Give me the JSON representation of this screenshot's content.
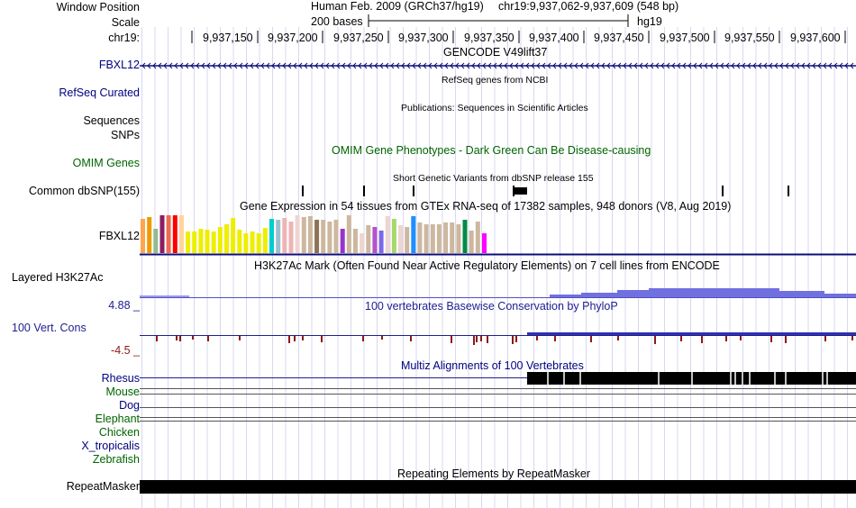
{
  "header": {
    "window_position_label": "Window Position",
    "assembly": "Human Feb. 2009 (GRCh37/hg19)",
    "position": "chr19:9,937,062-9,937,609 (548 bp)",
    "scale_label": "Scale",
    "scale_bases": "200 bases",
    "scale_db": "hg19",
    "chrom_label": "chr19:",
    "ruler_ticks": [
      "9,937,150",
      "9,937,200",
      "9,937,250",
      "9,937,300",
      "9,937,350",
      "9,937,400",
      "9,937,450",
      "9,937,500",
      "9,937,550",
      "9,937,600"
    ]
  },
  "tracks": {
    "gencode": {
      "title": "GENCODE V49lift37",
      "label": "FBXL12"
    },
    "refseq": {
      "title": "RefSeq genes from NCBI",
      "label": "RefSeq Curated"
    },
    "publications": {
      "title": "Publications: Sequences in Scientific Articles",
      "label1": "Sequences",
      "label2": "SNPs"
    },
    "omim": {
      "title": "OMIM Gene Phenotypes - Dark Green Can Be Disease-causing",
      "label": "OMIM Genes"
    },
    "dbsnp": {
      "title": "Short Genetic Variants from dbSNP release 155",
      "label": "Common dbSNP(155)"
    },
    "gtex": {
      "title": "Gene Expression in 54 tissues from GTEx RNA-seq of 17382 samples, 948 donors (V8, Aug 2019)",
      "label": "FBXL12",
      "levels": [
        0.88,
        0.92,
        0.62,
        0.98,
        0.98,
        0.98,
        0.98,
        0.55,
        0.55,
        0.62,
        0.6,
        0.55,
        0.68,
        0.75,
        0.9,
        0.6,
        0.5,
        0.55,
        0.5,
        0.65,
        0.88,
        0.86,
        0.9,
        0.82,
        0.98,
        0.92,
        0.95,
        0.85,
        0.86,
        0.82,
        0.85,
        0.62,
        0.98,
        0.62,
        0.52,
        0.72,
        0.68,
        0.58,
        0.95,
        0.88,
        0.72,
        0.68,
        0.95,
        0.8,
        0.75,
        0.75,
        0.75,
        0.78,
        0.8,
        0.75,
        0.85,
        0.58,
        0.82,
        0.5
      ],
      "colors": [
        "#FFA54F",
        "#EE9A00",
        "#8FBC8F",
        "#8B1C62",
        "#EE6A50",
        "#FF0000",
        "#FFD39B",
        "#EEEE00",
        "#EEEE00",
        "#EEEE00",
        "#EEEE00",
        "#EEEE00",
        "#EEEE00",
        "#EEEE00",
        "#EEEE00",
        "#EEEE00",
        "#EEEE00",
        "#EEEE00",
        "#EEEE00",
        "#EEEE00",
        "#00CDCD",
        "#9AC0CD",
        "#EEB4B4",
        "#EEB4B4",
        "#EED5D2",
        "#CDB79E",
        "#CDB79E",
        "#8B7355",
        "#CDB79E",
        "#CDB79E",
        "#CDB79E",
        "#9A32CD",
        "#CDB79E",
        "#CDB79E",
        "#EED5D2",
        "#CDB79E",
        "#B452CD",
        "#7A67EE",
        "#EED5D2",
        "#A6D96A",
        "#EED5D2",
        "#CDB79E",
        "#1E90FF",
        "#CDB79E",
        "#CDB79E",
        "#CDB79E",
        "#CDB79E",
        "#CDB79E",
        "#CDB79E",
        "#CDB79E",
        "#008B45",
        "#CDB79E",
        "#CDB79E",
        "#FF00FF"
      ]
    },
    "h3k27ac": {
      "title": "H3K27Ac Mark (Often Found Near Active Regulatory Elements) on 7 cell lines from ENCODE",
      "label": "Layered H3K27Ac"
    },
    "phylop": {
      "title": "100 vertebrates Basewise Conservation by PhyloP",
      "label": "100 Vert. Cons",
      "max": "4.88 _",
      "min": "-4.5 _"
    },
    "multiz": {
      "title": "Multiz Alignments of 100 Vertebrates",
      "species": [
        "Rhesus",
        "Mouse",
        "Dog",
        "Elephant",
        "Chicken",
        "X_tropicalis",
        "Zebrafish"
      ]
    },
    "repeatmasker": {
      "title": "Repeating Elements by RepeatMasker",
      "label": "RepeatMasker"
    }
  },
  "colors": {
    "navy": "#000080",
    "dark_green": "#006400",
    "track_blue": "#202090",
    "h3k27ac_fill": "#7070E0",
    "phylop_neg": "#8B1A1A",
    "gene_navy": "#0C0C78"
  }
}
